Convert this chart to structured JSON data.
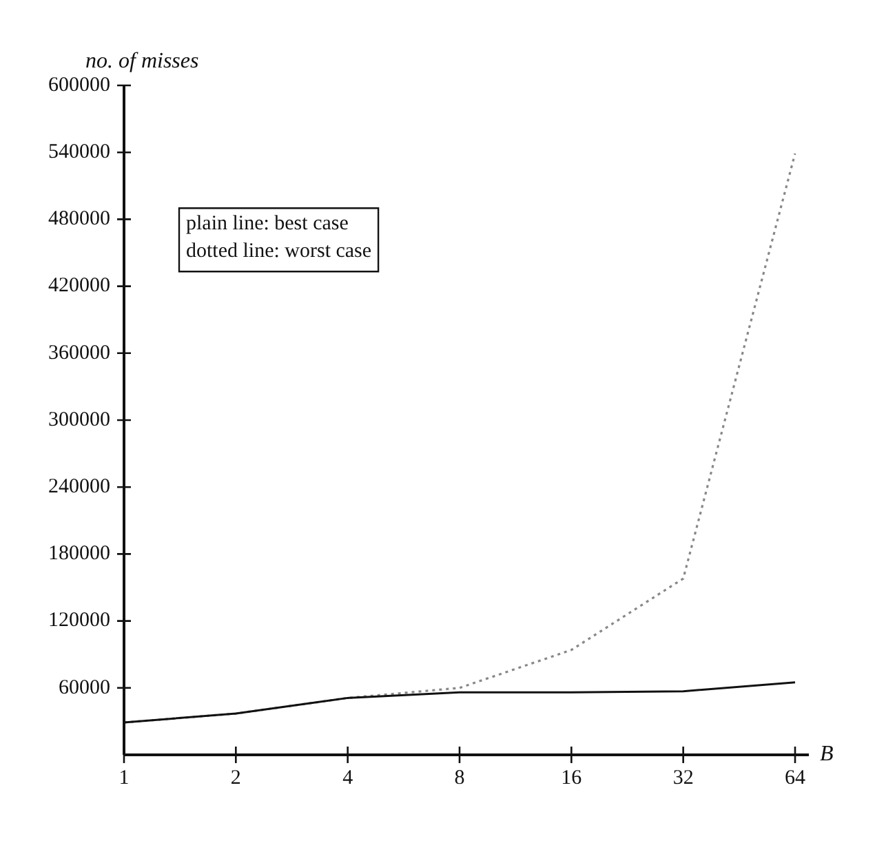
{
  "chart_data": {
    "type": "line",
    "xlabel": "B",
    "ylabel": "no. of misses",
    "categories": [
      "1",
      "2",
      "4",
      "8",
      "16",
      "32",
      "64"
    ],
    "series": [
      {
        "color": "#111111",
        "line_style": "solid",
        "values": [
          29000,
          37000,
          51000,
          56000,
          56000,
          57000,
          65000
        ]
      },
      {
        "color": "#888888",
        "line_style": "dotted",
        "values": [
          29000,
          37000,
          51000,
          60000,
          94000,
          158000,
          539000
        ]
      }
    ],
    "ylim": [
      0,
      600000
    ],
    "yticks": [
      60000,
      120000,
      180000,
      240000,
      300000,
      360000,
      420000,
      480000,
      540000,
      600000
    ],
    "annotations": [
      "plain line: best case",
      "dotted line: worst case"
    ],
    "grid": false,
    "legend": false,
    "marker": "none"
  }
}
